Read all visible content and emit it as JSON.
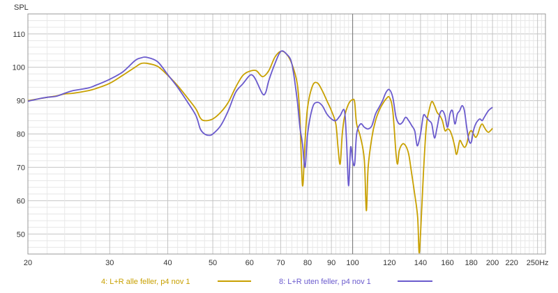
{
  "chart_data": {
    "type": "line",
    "ylabel": "SPL",
    "x_unit": "Hz",
    "x_scale": "log",
    "xlim": [
      20,
      260
    ],
    "ylim": [
      44,
      116
    ],
    "grid": true,
    "legend_position": "bottom",
    "y_ticks": [
      50,
      60,
      70,
      80,
      90,
      100,
      110
    ],
    "x_ticks": [
      20,
      30,
      40,
      50,
      60,
      70,
      80,
      90,
      100,
      120,
      140,
      160,
      180,
      200,
      220,
      250
    ],
    "x_tick_labels": [
      "20",
      "30",
      "40",
      "50",
      "60",
      "70",
      "80",
      "90",
      "100",
      "120",
      "140",
      "160",
      "180",
      "200",
      "220",
      "250Hz"
    ],
    "marker_x": 100,
    "series": [
      {
        "name": "4: L+R alle feller, p4 nov 1",
        "color": "#c8a000",
        "points": [
          [
            20,
            90
          ],
          [
            21,
            90.5
          ],
          [
            22,
            91
          ],
          [
            23,
            91.4
          ],
          [
            24,
            92
          ],
          [
            25,
            92.2
          ],
          [
            27,
            93
          ],
          [
            28,
            93.6
          ],
          [
            30,
            95.2
          ],
          [
            32,
            97.6
          ],
          [
            34,
            100
          ],
          [
            35,
            101.1
          ],
          [
            36,
            101.2
          ],
          [
            38,
            100.3
          ],
          [
            40,
            97.6
          ],
          [
            42,
            94.5
          ],
          [
            44,
            91
          ],
          [
            46,
            87.5
          ],
          [
            47,
            84.8
          ],
          [
            48,
            84
          ],
          [
            50,
            84.5
          ],
          [
            52,
            86.5
          ],
          [
            54,
            89.5
          ],
          [
            56,
            94
          ],
          [
            58,
            97.5
          ],
          [
            60,
            98.8
          ],
          [
            62,
            99
          ],
          [
            64,
            97.2
          ],
          [
            66,
            99
          ],
          [
            68,
            103
          ],
          [
            70,
            104.8
          ],
          [
            72,
            104
          ],
          [
            74,
            101
          ],
          [
            76,
            95
          ],
          [
            77,
            85
          ],
          [
            78,
            64.5
          ],
          [
            79,
            78
          ],
          [
            80,
            88
          ],
          [
            82,
            94.5
          ],
          [
            84,
            95.3
          ],
          [
            86,
            93
          ],
          [
            88,
            90
          ],
          [
            90,
            87
          ],
          [
            92,
            83
          ],
          [
            93,
            76
          ],
          [
            94,
            71
          ],
          [
            95,
            80
          ],
          [
            96,
            85
          ],
          [
            98,
            89
          ],
          [
            100,
            90.3
          ],
          [
            101,
            89.5
          ],
          [
            102,
            83
          ],
          [
            104,
            79
          ],
          [
            106,
            72
          ],
          [
            107,
            57
          ],
          [
            108,
            70
          ],
          [
            110,
            79
          ],
          [
            112,
            84
          ],
          [
            114,
            87
          ],
          [
            116,
            89
          ],
          [
            118,
            90.5
          ],
          [
            120,
            91
          ],
          [
            122,
            87
          ],
          [
            124,
            74
          ],
          [
            125,
            71
          ],
          [
            126,
            75
          ],
          [
            128,
            77
          ],
          [
            130,
            76.5
          ],
          [
            132,
            74
          ],
          [
            134,
            68
          ],
          [
            136,
            62
          ],
          [
            138,
            55
          ],
          [
            139,
            44.5
          ],
          [
            140,
            50
          ],
          [
            142,
            68
          ],
          [
            144,
            82
          ],
          [
            146,
            87
          ],
          [
            148,
            89.7
          ],
          [
            150,
            88.5
          ],
          [
            152,
            86.5
          ],
          [
            154,
            85.5
          ],
          [
            156,
            84
          ],
          [
            158,
            81
          ],
          [
            160,
            81.5
          ],
          [
            162,
            81
          ],
          [
            164,
            79
          ],
          [
            166,
            76
          ],
          [
            167,
            74
          ],
          [
            168,
            74.5
          ],
          [
            170,
            78
          ],
          [
            172,
            77
          ],
          [
            174,
            76
          ],
          [
            176,
            77
          ],
          [
            178,
            80
          ],
          [
            180,
            81
          ],
          [
            182,
            80
          ],
          [
            184,
            79
          ],
          [
            186,
            80
          ],
          [
            188,
            82
          ],
          [
            190,
            83
          ],
          [
            192,
            82
          ],
          [
            194,
            81
          ],
          [
            196,
            80.5
          ],
          [
            198,
            81
          ],
          [
            200,
            81.7
          ]
        ]
      },
      {
        "name": "8: L+R uten feller, p4 nov 1",
        "color": "#6a5acd",
        "points": [
          [
            20,
            89.8
          ],
          [
            21,
            90.5
          ],
          [
            22,
            91
          ],
          [
            23,
            91.3
          ],
          [
            24,
            92.2
          ],
          [
            25,
            93
          ],
          [
            27,
            93.8
          ],
          [
            28,
            94.6
          ],
          [
            30,
            96.4
          ],
          [
            32,
            98.6
          ],
          [
            34,
            102
          ],
          [
            35,
            102.8
          ],
          [
            36,
            103
          ],
          [
            38,
            101.7
          ],
          [
            40,
            97.8
          ],
          [
            42,
            94
          ],
          [
            44,
            89.8
          ],
          [
            46,
            85.5
          ],
          [
            47,
            81.5
          ],
          [
            48,
            80
          ],
          [
            49,
            79.6
          ],
          [
            50,
            80
          ],
          [
            52,
            82.5
          ],
          [
            54,
            87
          ],
          [
            56,
            92.5
          ],
          [
            58,
            95
          ],
          [
            60,
            97.5
          ],
          [
            61,
            97.5
          ],
          [
            62,
            96
          ],
          [
            64,
            92
          ],
          [
            65,
            92.5
          ],
          [
            66,
            96
          ],
          [
            68,
            101
          ],
          [
            70,
            104.7
          ],
          [
            72,
            104
          ],
          [
            74,
            101
          ],
          [
            76,
            90
          ],
          [
            77,
            82
          ],
          [
            78,
            77
          ],
          [
            79,
            70
          ],
          [
            80,
            80
          ],
          [
            82,
            88
          ],
          [
            84,
            89.5
          ],
          [
            86,
            88.5
          ],
          [
            88,
            86
          ],
          [
            90,
            84.5
          ],
          [
            92,
            84
          ],
          [
            94,
            85.5
          ],
          [
            96,
            87
          ],
          [
            97,
            78
          ],
          [
            98,
            64.5
          ],
          [
            99,
            76
          ],
          [
            100,
            72
          ],
          [
            101,
            71
          ],
          [
            102,
            80
          ],
          [
            104,
            83
          ],
          [
            106,
            82
          ],
          [
            108,
            81.5
          ],
          [
            110,
            82.5
          ],
          [
            112,
            86
          ],
          [
            114,
            88
          ],
          [
            116,
            90
          ],
          [
            118,
            92.5
          ],
          [
            120,
            93.3
          ],
          [
            122,
            91
          ],
          [
            124,
            85
          ],
          [
            126,
            83
          ],
          [
            128,
            83.5
          ],
          [
            130,
            85
          ],
          [
            132,
            84
          ],
          [
            134,
            82.5
          ],
          [
            136,
            81
          ],
          [
            137,
            78
          ],
          [
            138,
            76.5
          ],
          [
            140,
            80
          ],
          [
            142,
            85.5
          ],
          [
            144,
            85
          ],
          [
            146,
            84
          ],
          [
            148,
            83
          ],
          [
            150,
            78.8
          ],
          [
            152,
            82
          ],
          [
            154,
            86
          ],
          [
            156,
            87
          ],
          [
            158,
            85.5
          ],
          [
            160,
            82
          ],
          [
            162,
            86
          ],
          [
            164,
            87
          ],
          [
            166,
            83
          ],
          [
            168,
            86
          ],
          [
            170,
            87
          ],
          [
            172,
            88.5
          ],
          [
            174,
            87
          ],
          [
            176,
            82
          ],
          [
            178,
            78
          ],
          [
            180,
            77.5
          ],
          [
            182,
            81
          ],
          [
            184,
            83
          ],
          [
            186,
            84
          ],
          [
            188,
            84.5
          ],
          [
            190,
            84
          ],
          [
            192,
            85
          ],
          [
            196,
            87
          ],
          [
            200,
            88
          ]
        ]
      }
    ]
  }
}
